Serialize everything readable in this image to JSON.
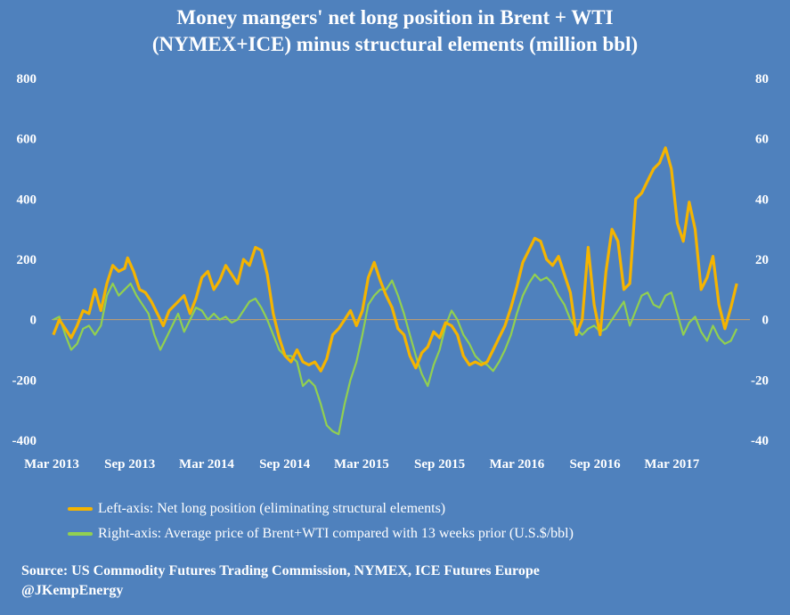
{
  "chart_data": {
    "type": "line",
    "title": [
      "Money mangers' net long position in Brent + WTI",
      "(NYMEX+ICE) minus structural elements (million bbl)"
    ],
    "x_tick_labels": [
      "Mar 2013",
      "Sep 2013",
      "Mar 2014",
      "Sep 2014",
      "Mar 2015",
      "Sep 2015",
      "Mar 2016",
      "Sep 2016",
      "Mar 2017"
    ],
    "left_axis": {
      "ticks": [
        "800",
        "600",
        "400",
        "200",
        "0",
        "-200",
        "-400"
      ],
      "ylim": [
        -400,
        800
      ]
    },
    "right_axis": {
      "ticks": [
        "80",
        "60",
        "40",
        "20",
        "0",
        "-20",
        "-40"
      ],
      "ylim": [
        -40,
        80
      ]
    },
    "grid": false,
    "legend_position": "bottom",
    "colors": {
      "background": "#4f81bd",
      "left_series": "#f5b400",
      "right_series": "#92d050",
      "zero_line": "#c9a06a"
    },
    "series": [
      {
        "name": "Left-axis: Net long position (eliminating structural elements)",
        "axis": "left",
        "points": [
          [
            "2013-03-05",
            -50
          ],
          [
            "2013-03-19",
            0
          ],
          [
            "2013-04-02",
            -30
          ],
          [
            "2013-04-16",
            -60
          ],
          [
            "2013-04-30",
            -20
          ],
          [
            "2013-05-14",
            30
          ],
          [
            "2013-05-28",
            20
          ],
          [
            "2013-06-11",
            100
          ],
          [
            "2013-06-25",
            30
          ],
          [
            "2013-07-09",
            120
          ],
          [
            "2013-07-23",
            180
          ],
          [
            "2013-08-06",
            160
          ],
          [
            "2013-08-20",
            170
          ],
          [
            "2013-08-27",
            205
          ],
          [
            "2013-09-10",
            160
          ],
          [
            "2013-09-24",
            100
          ],
          [
            "2013-10-08",
            90
          ],
          [
            "2013-10-22",
            60
          ],
          [
            "2013-11-05",
            20
          ],
          [
            "2013-11-19",
            -20
          ],
          [
            "2013-12-03",
            30
          ],
          [
            "2013-12-17",
            50
          ],
          [
            "2014-01-07",
            80
          ],
          [
            "2014-01-21",
            20
          ],
          [
            "2014-02-04",
            70
          ],
          [
            "2014-02-18",
            140
          ],
          [
            "2014-03-04",
            160
          ],
          [
            "2014-03-18",
            100
          ],
          [
            "2014-04-01",
            130
          ],
          [
            "2014-04-15",
            180
          ],
          [
            "2014-04-29",
            150
          ],
          [
            "2014-05-13",
            120
          ],
          [
            "2014-05-27",
            200
          ],
          [
            "2014-06-10",
            180
          ],
          [
            "2014-06-24",
            240
          ],
          [
            "2014-07-08",
            230
          ],
          [
            "2014-07-22",
            150
          ],
          [
            "2014-08-05",
            20
          ],
          [
            "2014-08-19",
            -60
          ],
          [
            "2014-09-02",
            -120
          ],
          [
            "2014-09-16",
            -140
          ],
          [
            "2014-09-30",
            -100
          ],
          [
            "2014-10-14",
            -140
          ],
          [
            "2014-10-28",
            -150
          ],
          [
            "2014-11-11",
            -140
          ],
          [
            "2014-11-25",
            -170
          ],
          [
            "2014-12-09",
            -130
          ],
          [
            "2014-12-23",
            -50
          ],
          [
            "2015-01-06",
            -30
          ],
          [
            "2015-01-20",
            0
          ],
          [
            "2015-02-03",
            30
          ],
          [
            "2015-02-17",
            -20
          ],
          [
            "2015-03-03",
            30
          ],
          [
            "2015-03-17",
            140
          ],
          [
            "2015-03-31",
            190
          ],
          [
            "2015-04-14",
            130
          ],
          [
            "2015-04-28",
            80
          ],
          [
            "2015-05-12",
            40
          ],
          [
            "2015-05-26",
            -30
          ],
          [
            "2015-06-09",
            -50
          ],
          [
            "2015-06-23",
            -120
          ],
          [
            "2015-07-07",
            -160
          ],
          [
            "2015-07-21",
            -110
          ],
          [
            "2015-08-04",
            -90
          ],
          [
            "2015-08-18",
            -40
          ],
          [
            "2015-09-01",
            -60
          ],
          [
            "2015-09-15",
            -10
          ],
          [
            "2015-09-29",
            -20
          ],
          [
            "2015-10-13",
            -50
          ],
          [
            "2015-10-27",
            -120
          ],
          [
            "2015-11-10",
            -150
          ],
          [
            "2015-11-24",
            -140
          ],
          [
            "2015-12-08",
            -150
          ],
          [
            "2015-12-22",
            -140
          ],
          [
            "2016-01-05",
            -100
          ],
          [
            "2016-01-19",
            -60
          ],
          [
            "2016-02-02",
            -20
          ],
          [
            "2016-02-16",
            40
          ],
          [
            "2016-03-01",
            110
          ],
          [
            "2016-03-15",
            190
          ],
          [
            "2016-03-29",
            230
          ],
          [
            "2016-04-12",
            270
          ],
          [
            "2016-04-26",
            260
          ],
          [
            "2016-05-10",
            200
          ],
          [
            "2016-05-24",
            180
          ],
          [
            "2016-06-07",
            210
          ],
          [
            "2016-06-21",
            150
          ],
          [
            "2016-07-05",
            90
          ],
          [
            "2016-07-19",
            -50
          ],
          [
            "2016-08-02",
            0
          ],
          [
            "2016-08-16",
            240
          ],
          [
            "2016-08-30",
            50
          ],
          [
            "2016-09-13",
            -50
          ],
          [
            "2016-09-27",
            160
          ],
          [
            "2016-10-11",
            300
          ],
          [
            "2016-10-25",
            260
          ],
          [
            "2016-11-08",
            100
          ],
          [
            "2016-11-22",
            120
          ],
          [
            "2016-12-06",
            400
          ],
          [
            "2016-12-20",
            420
          ],
          [
            "2017-01-03",
            460
          ],
          [
            "2017-01-17",
            500
          ],
          [
            "2017-01-31",
            520
          ],
          [
            "2017-02-14",
            570
          ],
          [
            "2017-02-28",
            500
          ],
          [
            "2017-03-14",
            320
          ],
          [
            "2017-03-28",
            260
          ],
          [
            "2017-04-11",
            390
          ],
          [
            "2017-04-25",
            300
          ],
          [
            "2017-05-09",
            100
          ],
          [
            "2017-05-23",
            140
          ],
          [
            "2017-06-06",
            210
          ],
          [
            "2017-06-20",
            50
          ],
          [
            "2017-07-04",
            -30
          ],
          [
            "2017-07-18",
            40
          ],
          [
            "2017-08-01",
            120
          ]
        ]
      },
      {
        "name": "Right-axis: Average price of  Brent+WTI compared with 13 weeks prior (U.S.$/bbl)",
        "axis": "right",
        "points": [
          [
            "2013-03-05",
            0
          ],
          [
            "2013-03-19",
            1
          ],
          [
            "2013-04-02",
            -5
          ],
          [
            "2013-04-16",
            -10
          ],
          [
            "2013-04-30",
            -8
          ],
          [
            "2013-05-14",
            -3
          ],
          [
            "2013-05-28",
            -2
          ],
          [
            "2013-06-11",
            -5
          ],
          [
            "2013-06-25",
            -2
          ],
          [
            "2013-07-09",
            8
          ],
          [
            "2013-07-23",
            12
          ],
          [
            "2013-08-06",
            8
          ],
          [
            "2013-08-20",
            10
          ],
          [
            "2013-09-03",
            12
          ],
          [
            "2013-09-17",
            8
          ],
          [
            "2013-10-01",
            5
          ],
          [
            "2013-10-15",
            2
          ],
          [
            "2013-10-29",
            -5
          ],
          [
            "2013-11-12",
            -10
          ],
          [
            "2013-11-26",
            -6
          ],
          [
            "2013-12-10",
            -2
          ],
          [
            "2013-12-24",
            2
          ],
          [
            "2014-01-07",
            -4
          ],
          [
            "2014-01-21",
            0
          ],
          [
            "2014-02-04",
            4
          ],
          [
            "2014-02-18",
            3
          ],
          [
            "2014-03-04",
            0
          ],
          [
            "2014-03-18",
            2
          ],
          [
            "2014-04-01",
            0
          ],
          [
            "2014-04-15",
            1
          ],
          [
            "2014-04-29",
            -1
          ],
          [
            "2014-05-13",
            0
          ],
          [
            "2014-05-27",
            3
          ],
          [
            "2014-06-10",
            6
          ],
          [
            "2014-06-24",
            7
          ],
          [
            "2014-07-08",
            4
          ],
          [
            "2014-07-22",
            0
          ],
          [
            "2014-08-05",
            -5
          ],
          [
            "2014-08-19",
            -10
          ],
          [
            "2014-09-02",
            -12
          ],
          [
            "2014-09-16",
            -12
          ],
          [
            "2014-09-30",
            -14
          ],
          [
            "2014-10-14",
            -22
          ],
          [
            "2014-10-28",
            -20
          ],
          [
            "2014-11-11",
            -22
          ],
          [
            "2014-11-25",
            -28
          ],
          [
            "2014-12-09",
            -35
          ],
          [
            "2014-12-23",
            -37
          ],
          [
            "2015-01-06",
            -38
          ],
          [
            "2015-01-20",
            -28
          ],
          [
            "2015-02-03",
            -20
          ],
          [
            "2015-02-17",
            -14
          ],
          [
            "2015-03-03",
            -5
          ],
          [
            "2015-03-17",
            5
          ],
          [
            "2015-03-31",
            8
          ],
          [
            "2015-04-14",
            10
          ],
          [
            "2015-04-28",
            10
          ],
          [
            "2015-05-12",
            13
          ],
          [
            "2015-05-26",
            8
          ],
          [
            "2015-06-09",
            2
          ],
          [
            "2015-06-23",
            -5
          ],
          [
            "2015-07-07",
            -12
          ],
          [
            "2015-07-21",
            -18
          ],
          [
            "2015-08-04",
            -22
          ],
          [
            "2015-08-18",
            -15
          ],
          [
            "2015-09-01",
            -10
          ],
          [
            "2015-09-15",
            -2
          ],
          [
            "2015-09-29",
            3
          ],
          [
            "2015-10-13",
            0
          ],
          [
            "2015-10-27",
            -5
          ],
          [
            "2015-11-10",
            -8
          ],
          [
            "2015-11-24",
            -12
          ],
          [
            "2015-12-08",
            -14
          ],
          [
            "2015-12-22",
            -15
          ],
          [
            "2016-01-05",
            -17
          ],
          [
            "2016-01-19",
            -14
          ],
          [
            "2016-02-02",
            -10
          ],
          [
            "2016-02-16",
            -5
          ],
          [
            "2016-03-01",
            2
          ],
          [
            "2016-03-15",
            8
          ],
          [
            "2016-03-29",
            12
          ],
          [
            "2016-04-12",
            15
          ],
          [
            "2016-04-26",
            13
          ],
          [
            "2016-05-10",
            14
          ],
          [
            "2016-05-24",
            12
          ],
          [
            "2016-06-07",
            8
          ],
          [
            "2016-06-21",
            5
          ],
          [
            "2016-07-05",
            0
          ],
          [
            "2016-07-19",
            -3
          ],
          [
            "2016-08-02",
            -5
          ],
          [
            "2016-08-16",
            -3
          ],
          [
            "2016-08-30",
            -2
          ],
          [
            "2016-09-13",
            -4
          ],
          [
            "2016-09-27",
            -3
          ],
          [
            "2016-10-11",
            0
          ],
          [
            "2016-10-25",
            3
          ],
          [
            "2016-11-08",
            6
          ],
          [
            "2016-11-22",
            -2
          ],
          [
            "2016-12-06",
            3
          ],
          [
            "2016-12-20",
            8
          ],
          [
            "2017-01-03",
            9
          ],
          [
            "2017-01-17",
            5
          ],
          [
            "2017-01-31",
            4
          ],
          [
            "2017-02-14",
            8
          ],
          [
            "2017-02-28",
            9
          ],
          [
            "2017-03-14",
            2
          ],
          [
            "2017-03-28",
            -5
          ],
          [
            "2017-04-11",
            -1
          ],
          [
            "2017-04-25",
            1
          ],
          [
            "2017-05-09",
            -4
          ],
          [
            "2017-05-23",
            -7
          ],
          [
            "2017-06-06",
            -2
          ],
          [
            "2017-06-20",
            -6
          ],
          [
            "2017-07-04",
            -8
          ],
          [
            "2017-07-18",
            -7
          ],
          [
            "2017-08-01",
            -3
          ]
        ]
      }
    ]
  },
  "source": [
    "Source: US Commodity Futures Trading Commission, NYMEX, ICE Futures Europe",
    "@JKempEnergy"
  ]
}
